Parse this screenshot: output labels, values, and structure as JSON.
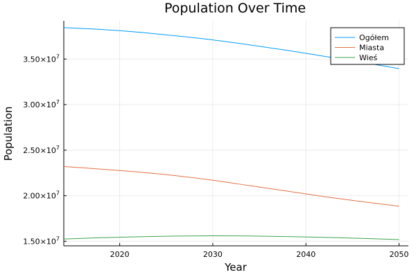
{
  "chart_data": {
    "type": "line",
    "title": "Population Over Time",
    "xlabel": "Year",
    "ylabel": "Population",
    "xlim": [
      2014,
      2051
    ],
    "ylim": [
      14500000,
      39200000
    ],
    "x_ticks": [
      {
        "value": 2020,
        "label": "2020"
      },
      {
        "value": 2030,
        "label": "2030"
      },
      {
        "value": 2040,
        "label": "2040"
      },
      {
        "value": 2050,
        "label": "2050"
      }
    ],
    "y_ticks": [
      {
        "value": 15000000,
        "mantissa": "1.50",
        "exp_base": "×10",
        "exp": "7"
      },
      {
        "value": 20000000,
        "mantissa": "2.00",
        "exp_base": "×10",
        "exp": "7"
      },
      {
        "value": 25000000,
        "mantissa": "2.50",
        "exp_base": "×10",
        "exp": "7"
      },
      {
        "value": 30000000,
        "mantissa": "3.00",
        "exp_base": "×10",
        "exp": "7"
      },
      {
        "value": 35000000,
        "mantissa": "3.50",
        "exp_base": "×10",
        "exp": "7"
      }
    ],
    "grid": true,
    "legend_position": "top-right",
    "x": [
      2014,
      2018,
      2022,
      2026,
      2030,
      2034,
      2038,
      2042,
      2046,
      2050
    ],
    "series": [
      {
        "name": "Ogółem",
        "color": "#009AFA",
        "values": [
          38450000,
          38250000,
          37950000,
          37550000,
          37100000,
          36550000,
          35950000,
          35300000,
          34650000,
          33950000
        ]
      },
      {
        "name": "Miasta",
        "color": "#E26F46",
        "values": [
          23200000,
          22920000,
          22600000,
          22200000,
          21700000,
          21100000,
          20500000,
          19900000,
          19350000,
          18850000
        ]
      },
      {
        "name": "Wieś",
        "color": "#3DA44D",
        "values": [
          15250000,
          15390000,
          15500000,
          15570000,
          15600000,
          15580000,
          15520000,
          15430000,
          15320000,
          15180000
        ]
      }
    ]
  }
}
